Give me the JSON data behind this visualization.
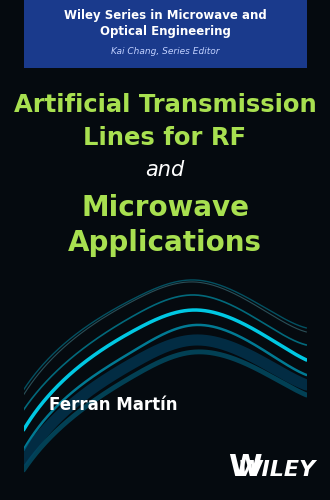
{
  "bg_color": "#050a0f",
  "header_bg": "#1a3a8c",
  "header_text1": "Wiley Series in Microwave and",
  "header_text2": "Optical Engineering",
  "header_text3": "Kai Chang, Series Editor",
  "title_line1": "Artificial Transmission",
  "title_line2": "Lines for RF",
  "title_line3": "and",
  "title_line4": "Microwave",
  "title_line5": "Applications",
  "title_color": "#a8e050",
  "and_color": "#ffffff",
  "author": "Ferran Martín",
  "author_color": "#ffffff",
  "wiley_color": "#ffffff",
  "wave_colors": [
    "#00aacc",
    "#00ccdd",
    "#008899",
    "#00bbdd",
    "#006688"
  ],
  "wave_alpha": [
    0.9,
    0.7,
    0.5,
    0.6,
    0.4
  ]
}
